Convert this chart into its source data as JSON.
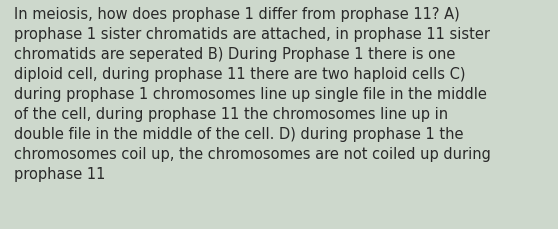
{
  "lines": [
    "In meiosis, how does prophase 1 differ from prophase 11? A)",
    "prophase 1 sister chromatids are attached, in prophase 11 sister",
    "chromatids are seperated B) During Prophase 1 there is one",
    "diploid cell, during prophase 11 there are two haploid cells C)",
    "during prophase 1 chromosomes line up single file in the middle",
    "of the cell, during prophase 11 the chromosomes line up in",
    "double file in the middle of the cell. D) during prophase 1 the",
    "chromosomes coil up, the chromosomes are not coiled up during",
    "prophase 11"
  ],
  "bg_color": "#cdd8cc",
  "text_color": "#2a2a2a",
  "font_size": 10.5,
  "fig_width": 5.58,
  "fig_height": 2.3,
  "dpi": 100
}
